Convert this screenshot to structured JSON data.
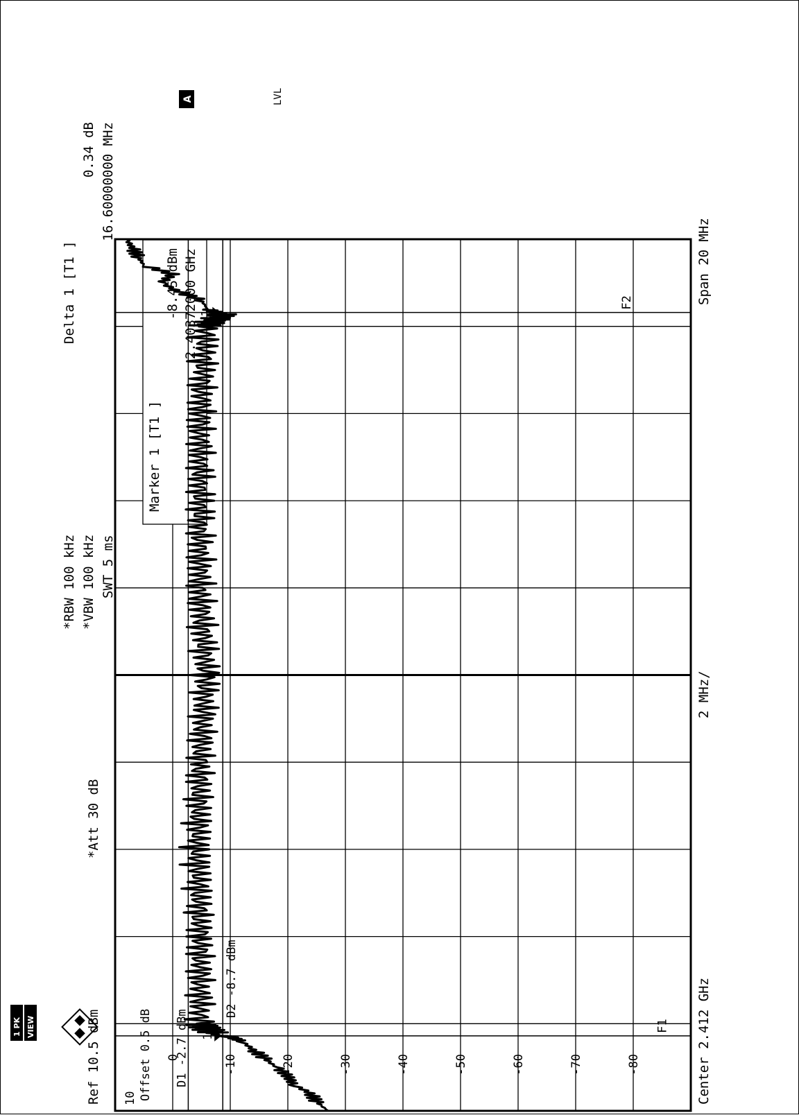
{
  "badges": {
    "side": [
      "1 PK",
      "VIEW"
    ],
    "trace": "A",
    "level": "LVL"
  },
  "header": {
    "ref": "Ref  10.5 dBm",
    "att": "*Att   30 dB",
    "rbw": "*RBW 100 kHz",
    "vbw": "*VBW 100 kHz",
    "swt": "SWT 5 ms",
    "delta_title": "Delta 1 [T1 ]",
    "delta_value": "0.34 dB",
    "delta_freq": "16.60000000 MHz"
  },
  "marker_box": {
    "line1": "Marker 1 [T1 ]",
    "line2": "-8.45 dBm",
    "line3": "2.40372000 GHz"
  },
  "annotations": {
    "offset": "Offset  0.5 dB",
    "d1": "D1  -2.7 dBm",
    "d2": "D2  -8.7 dBm",
    "f1": "F1",
    "f2": "F2",
    "marker1": "1",
    "marker_delta": "1"
  },
  "footer": {
    "center": "Center 2.412 GHz",
    "perdiv": "2 MHz/",
    "span": "Span 20 MHz"
  },
  "chart_data": {
    "type": "line",
    "xlabel": "",
    "ylabel": "",
    "x_unit": "GHz",
    "y_unit": "dBm",
    "xlim": [
      2.402,
      2.422
    ],
    "ylim": [
      -90,
      10
    ],
    "y_ticks": [
      10,
      0,
      -10,
      -20,
      -30,
      -40,
      -50,
      -60,
      -70,
      -80
    ],
    "y_tick_labels": [
      "10",
      "0",
      "-10",
      "-20",
      "-30",
      "-40",
      "-50",
      "-60",
      "-70",
      "-80"
    ],
    "display_lines": {
      "D1_dBm": -2.7,
      "D2_dBm": -8.7
    },
    "frequency_lines": {
      "F1_GHz": 2.40372,
      "F2_GHz": 2.42032
    },
    "center_line_GHz": 2.412,
    "markers": [
      {
        "label": "1",
        "x": 2.40372,
        "y": -8.45
      },
      {
        "label": "1",
        "x": 2.42032,
        "y": -8.11
      }
    ],
    "series": [
      {
        "x": [
          2.402,
          2.4022,
          2.4024,
          2.4026,
          2.4028,
          2.403,
          2.4032,
          2.4034,
          2.4036,
          2.4037,
          2.40372,
          2.4038,
          2.404,
          2.406,
          2.408,
          2.41,
          2.412,
          2.414,
          2.416,
          2.418,
          2.42,
          2.4203,
          2.4204,
          2.4206,
          2.4208,
          2.421,
          2.4212,
          2.4214,
          2.4216,
          2.4218,
          2.422
        ],
        "y": [
          -27,
          -25,
          -24,
          -21,
          -20,
          -18,
          -16,
          -14,
          -12,
          -10,
          -8.45,
          -6,
          -4,
          -4,
          -3.5,
          -4,
          -5,
          -4,
          -4,
          -4,
          -5,
          -8.11,
          -6,
          -5,
          -1,
          2,
          0,
          5,
          6,
          7,
          8
        ]
      }
    ]
  }
}
